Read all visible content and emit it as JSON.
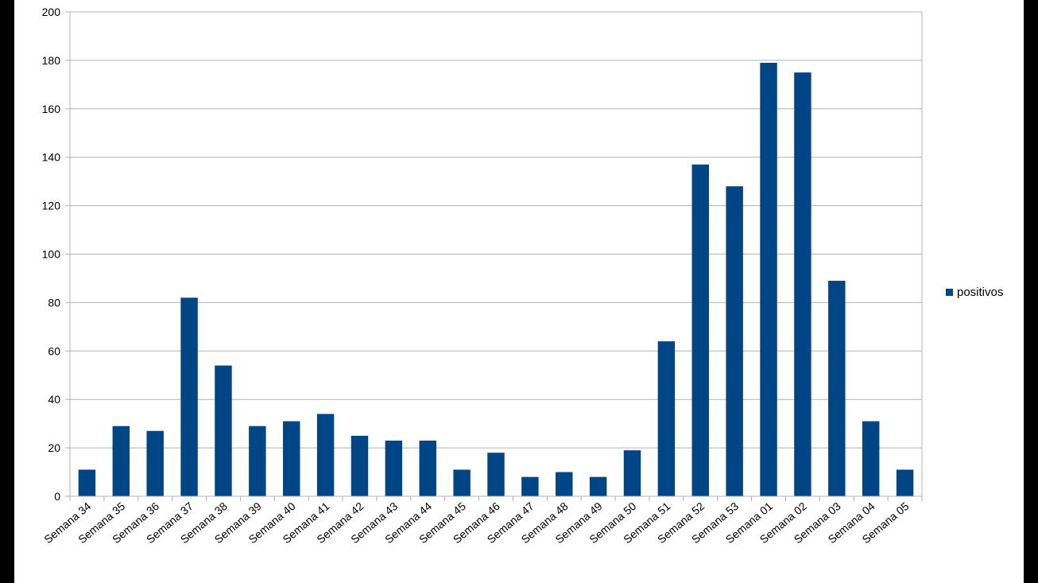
{
  "chart_data": {
    "type": "bar",
    "categories": [
      "Semana 34",
      "Semana 35",
      "Semana 36",
      "Semana 37",
      "Semana 38",
      "Semana 39",
      "Semana 40",
      "Semana 41",
      "Semana 42",
      "Semana 43",
      "Semana 44",
      "Semana 45",
      "Semana 46",
      "Semana 47",
      "Semana 48",
      "Semana 49",
      "Semana 50",
      "Semana 51",
      "Semana 52",
      "Semana 53",
      "Semana 01",
      "Semana 02",
      "Semana 03",
      "Semana 04",
      "Semana 05"
    ],
    "series": [
      {
        "name": "positivos",
        "values": [
          11,
          29,
          27,
          82,
          54,
          29,
          31,
          34,
          25,
          23,
          23,
          11,
          18,
          8,
          10,
          8,
          19,
          64,
          137,
          128,
          179,
          175,
          89,
          31,
          11
        ]
      }
    ],
    "ylim": [
      0,
      200
    ],
    "yticks": [
      0,
      20,
      40,
      60,
      80,
      100,
      120,
      140,
      160,
      180,
      200
    ],
    "yticks_labels": [
      "0",
      "20",
      "40",
      "60",
      "80",
      "100",
      "120",
      "140",
      "160",
      "180",
      "200"
    ],
    "grid": true,
    "legend_position": "right",
    "title": "",
    "xlabel": "",
    "ylabel": "",
    "bar_color": "#004586",
    "grid_color": "#b3b3b3"
  }
}
